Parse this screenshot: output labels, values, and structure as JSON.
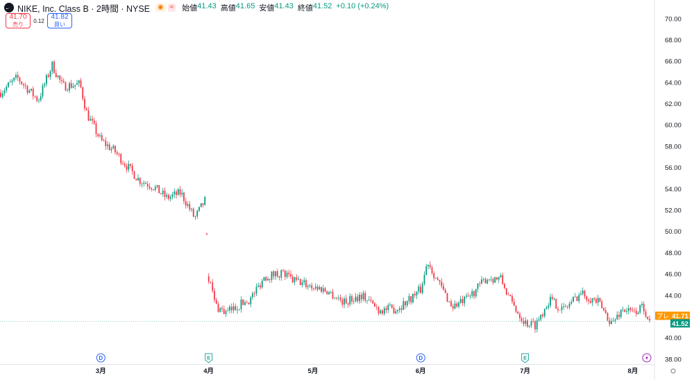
{
  "header": {
    "symbol_title": "NIKE, Inc. Class B · 2時間 · NYSE",
    "logo_icon": "nike-swoosh-icon",
    "badge_icons": [
      "eye-icon",
      "approx-icon"
    ],
    "ohlc": {
      "open_label": "始値",
      "open": "41.43",
      "high_label": "高値",
      "high": "41.65",
      "low_label": "安値",
      "low": "41.43",
      "close_label": "終値",
      "close": "41.52",
      "change": "+0.10 (+0.24%)"
    }
  },
  "trade": {
    "sell_price": "41.70",
    "sell_label": "売り",
    "spread": "0.12",
    "buy_price": "41.82",
    "buy_label": "買い"
  },
  "chart_data": {
    "type": "candlestick",
    "title": "NIKE, Inc. Class B · 2時間 · NYSE",
    "y_axis": {
      "ticks": [
        "70.00",
        "68.00",
        "66.00",
        "64.00",
        "62.00",
        "60.00",
        "58.00",
        "56.00",
        "54.00",
        "52.00",
        "50.00",
        "48.00",
        "46.00",
        "44.00",
        "42.00",
        "40.00",
        "38.00"
      ],
      "range": [
        37.5,
        70.8
      ]
    },
    "x_axis": {
      "ticks": [
        {
          "label": "3月",
          "date": "2024-03-01"
        },
        {
          "label": "4月",
          "date": "2024-04-01"
        },
        {
          "label": "5月",
          "date": "2024-05-01"
        },
        {
          "label": "6月",
          "date": "2024-06-01"
        },
        {
          "label": "7月",
          "date": "2024-07-01"
        },
        {
          "label": "8月",
          "date": "2024-08-01"
        }
      ],
      "range": [
        "2024-02-01",
        "2024-08-07"
      ]
    },
    "event_markers": [
      {
        "type": "D",
        "date": "2024-03-01"
      },
      {
        "type": "E",
        "date": "2024-04-01"
      },
      {
        "type": "D",
        "date": "2024-06-01"
      },
      {
        "type": "E",
        "date": "2024-07-01"
      },
      {
        "type": "flash",
        "date": "2024-08-05"
      }
    ],
    "price_labels": [
      {
        "text": "プレ",
        "value": "41.71",
        "color": "#ff9800"
      },
      {
        "text": "",
        "value": "41.52",
        "color": "#089981"
      }
    ],
    "approx_path": [
      [
        "2024-02-01",
        63.0
      ],
      [
        "2024-02-06",
        64.4
      ],
      [
        "2024-02-12",
        62.3
      ],
      [
        "2024-02-16",
        65.6
      ],
      [
        "2024-02-19",
        63.6
      ],
      [
        "2024-02-24",
        63.8
      ],
      [
        "2024-02-26",
        61.0
      ],
      [
        "2024-03-01",
        58.5
      ],
      [
        "2024-03-05",
        57.5
      ],
      [
        "2024-03-08",
        56.3
      ],
      [
        "2024-03-12",
        54.8
      ],
      [
        "2024-03-16",
        54.2
      ],
      [
        "2024-03-20",
        53.1
      ],
      [
        "2024-03-24",
        53.6
      ],
      [
        "2024-03-28",
        51.2
      ],
      [
        "2024-03-31",
        52.9
      ],
      [
        "2024-04-01",
        45.7
      ],
      [
        "2024-04-03",
        43.0
      ],
      [
        "2024-04-06",
        42.3
      ],
      [
        "2024-04-10",
        43.1
      ],
      [
        "2024-04-13",
        43.6
      ],
      [
        "2024-04-17",
        45.7
      ],
      [
        "2024-04-22",
        46.1
      ],
      [
        "2024-04-25",
        45.4
      ],
      [
        "2024-04-30",
        44.9
      ],
      [
        "2024-05-05",
        44.4
      ],
      [
        "2024-05-10",
        43.3
      ],
      [
        "2024-05-15",
        44.0
      ],
      [
        "2024-05-20",
        42.6
      ],
      [
        "2024-05-25",
        42.7
      ],
      [
        "2024-05-28",
        43.4
      ],
      [
        "2024-06-01",
        44.5
      ],
      [
        "2024-06-03",
        47.2
      ],
      [
        "2024-06-06",
        45.2
      ],
      [
        "2024-06-10",
        42.9
      ],
      [
        "2024-06-14",
        43.5
      ],
      [
        "2024-06-20",
        45.6
      ],
      [
        "2024-06-24",
        45.5
      ],
      [
        "2024-06-27",
        43.3
      ],
      [
        "2024-07-01",
        41.4
      ],
      [
        "2024-07-04",
        41.2
      ],
      [
        "2024-07-08",
        43.6
      ],
      [
        "2024-07-12",
        42.6
      ],
      [
        "2024-07-17",
        44.2
      ],
      [
        "2024-07-22",
        43.3
      ],
      [
        "2024-07-26",
        41.3
      ],
      [
        "2024-07-29",
        42.7
      ],
      [
        "2024-08-01",
        42.3
      ],
      [
        "2024-08-04",
        42.9
      ],
      [
        "2024-08-06",
        41.5
      ]
    ],
    "colors": {
      "up": "#089981",
      "down": "#f23645",
      "grid": "#f0f3fa",
      "axis_text": "#131722"
    },
    "grid": "horizontal dashed at current price"
  }
}
